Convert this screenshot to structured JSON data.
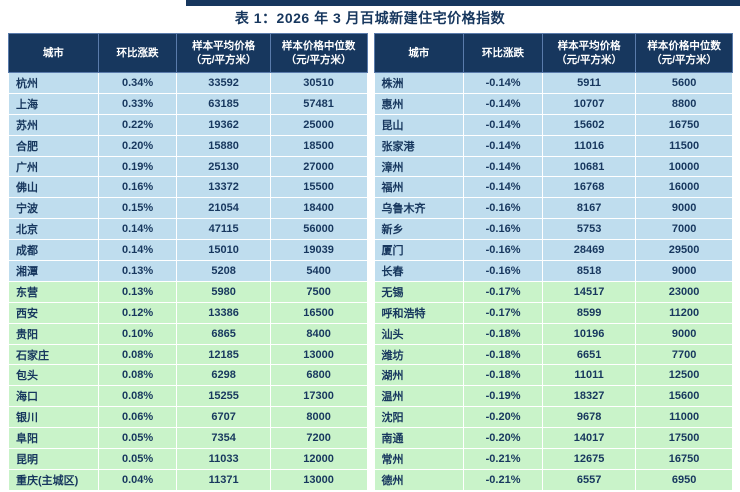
{
  "page": {
    "title": "表 1：2026 年 3 月百城新建住宅价格指数"
  },
  "colors": {
    "header_bg": "#17375E",
    "text": "#17375E",
    "blue_row": "#BFDDEE",
    "green_row": "#C9F3C9"
  },
  "columns": [
    {
      "label": "城市",
      "sub": ""
    },
    {
      "label": "环比涨跌",
      "sub": ""
    },
    {
      "label": "样本平均价格",
      "sub": "（元/平方米）"
    },
    {
      "label": "样本价格中位数",
      "sub": "（元/平方米）"
    }
  ],
  "green_start_index": 10,
  "tables": [
    {
      "rows": [
        [
          "杭州",
          "0.34%",
          "33592",
          "30510"
        ],
        [
          "上海",
          "0.33%",
          "63185",
          "57481"
        ],
        [
          "苏州",
          "0.22%",
          "19362",
          "25000"
        ],
        [
          "合肥",
          "0.20%",
          "15880",
          "18500"
        ],
        [
          "广州",
          "0.19%",
          "25130",
          "27000"
        ],
        [
          "佛山",
          "0.16%",
          "13372",
          "15500"
        ],
        [
          "宁波",
          "0.15%",
          "21054",
          "18400"
        ],
        [
          "北京",
          "0.14%",
          "47115",
          "56000"
        ],
        [
          "成都",
          "0.14%",
          "15010",
          "19039"
        ],
        [
          "湘潭",
          "0.13%",
          "5208",
          "5400"
        ],
        [
          "东营",
          "0.13%",
          "5980",
          "7500"
        ],
        [
          "西安",
          "0.12%",
          "13386",
          "16500"
        ],
        [
          "贵阳",
          "0.10%",
          "6865",
          "8400"
        ],
        [
          "石家庄",
          "0.08%",
          "12185",
          "13000"
        ],
        [
          "包头",
          "0.08%",
          "6298",
          "6800"
        ],
        [
          "海口",
          "0.08%",
          "15255",
          "17300"
        ],
        [
          "银川",
          "0.06%",
          "6707",
          "8000"
        ],
        [
          "阜阳",
          "0.05%",
          "7354",
          "7200"
        ],
        [
          "昆明",
          "0.05%",
          "11033",
          "12000"
        ],
        [
          "重庆(主城区)",
          "0.04%",
          "11371",
          "13000"
        ]
      ]
    },
    {
      "rows": [
        [
          "株洲",
          "-0.14%",
          "5911",
          "5600"
        ],
        [
          "惠州",
          "-0.14%",
          "10707",
          "8800"
        ],
        [
          "昆山",
          "-0.14%",
          "15602",
          "16750"
        ],
        [
          "张家港",
          "-0.14%",
          "11016",
          "11500"
        ],
        [
          "漳州",
          "-0.14%",
          "10681",
          "10000"
        ],
        [
          "福州",
          "-0.14%",
          "16768",
          "16000"
        ],
        [
          "乌鲁木齐",
          "-0.16%",
          "8167",
          "9000"
        ],
        [
          "新乡",
          "-0.16%",
          "5753",
          "7000"
        ],
        [
          "厦门",
          "-0.16%",
          "28469",
          "29500"
        ],
        [
          "长春",
          "-0.16%",
          "8518",
          "9000"
        ],
        [
          "无锡",
          "-0.17%",
          "14517",
          "23000"
        ],
        [
          "呼和浩特",
          "-0.17%",
          "8599",
          "11200"
        ],
        [
          "汕头",
          "-0.18%",
          "10196",
          "9000"
        ],
        [
          "潍坊",
          "-0.18%",
          "6651",
          "7700"
        ],
        [
          "湖州",
          "-0.18%",
          "11011",
          "12500"
        ],
        [
          "温州",
          "-0.19%",
          "18327",
          "15600"
        ],
        [
          "沈阳",
          "-0.20%",
          "9678",
          "11000"
        ],
        [
          "南通",
          "-0.20%",
          "14017",
          "17500"
        ],
        [
          "常州",
          "-0.21%",
          "12675",
          "16750"
        ],
        [
          "德州",
          "-0.21%",
          "6557",
          "6950"
        ]
      ]
    }
  ]
}
